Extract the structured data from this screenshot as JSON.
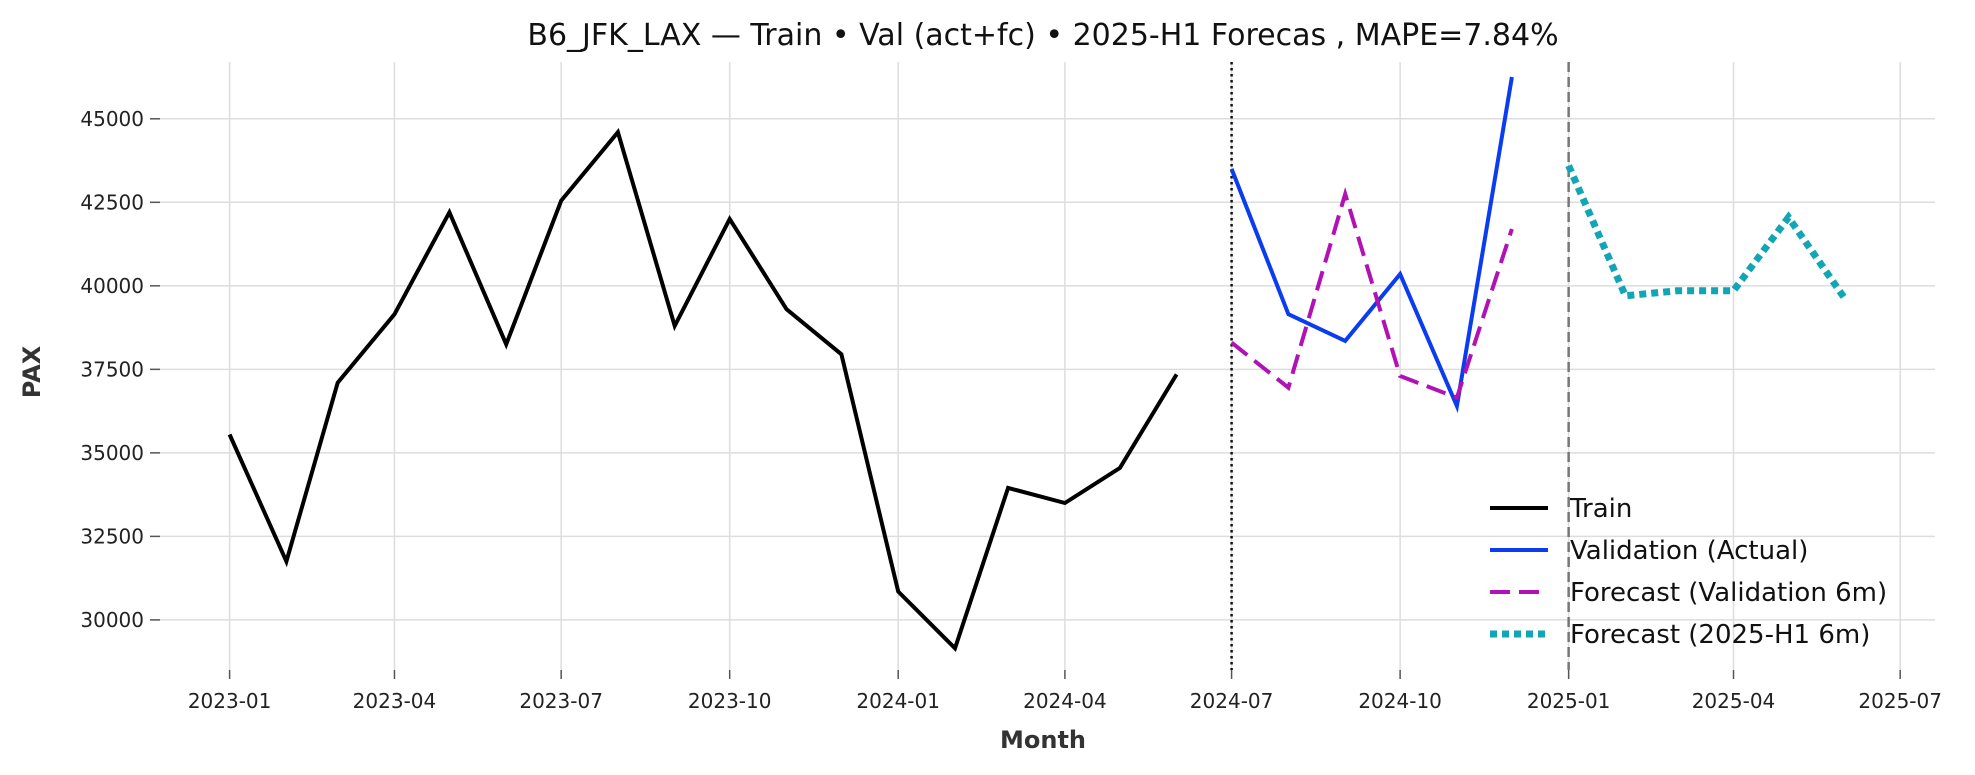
{
  "chart_data": {
    "type": "line",
    "title": "B6_JFK_LAX — Train • Val (act+fc) • 2025-H1 Forecas , MAPE=7.84%",
    "xlabel": "Month",
    "ylabel": "PAX",
    "xlim": [
      "2022-11-24",
      "2025-07-20"
    ],
    "ylim": [
      28500,
      46700
    ],
    "grid": true,
    "legend_position": "bottom-right",
    "x_ticks": [
      "2023-01",
      "2023-04",
      "2023-07",
      "2023-10",
      "2024-01",
      "2024-04",
      "2024-07",
      "2024-10",
      "2025-01",
      "2025-04",
      "2025-07"
    ],
    "y_ticks": [
      30000,
      32500,
      35000,
      37500,
      40000,
      42500,
      45000
    ],
    "vlines": [
      {
        "x": "2024-07-01",
        "color": "#111111",
        "style": "dotted"
      },
      {
        "x": "2025-01-01",
        "color": "#777777",
        "style": "dashed"
      }
    ],
    "series": [
      {
        "name": "Train",
        "color": "#000000",
        "style": "solid",
        "x": [
          "2023-01-01",
          "2023-02-01",
          "2023-03-01",
          "2023-04-01",
          "2023-05-01",
          "2023-06-01",
          "2023-07-01",
          "2023-08-01",
          "2023-09-01",
          "2023-10-01",
          "2023-11-01",
          "2023-12-01",
          "2024-01-01",
          "2024-02-01",
          "2024-03-01",
          "2024-04-01",
          "2024-05-01",
          "2024-06-01"
        ],
        "values": [
          35550,
          31750,
          37100,
          39150,
          42200,
          38250,
          42550,
          44600,
          38800,
          42000,
          39300,
          37950,
          30850,
          29150,
          33950,
          33500,
          34550,
          37350
        ]
      },
      {
        "name": "Validation (Actual)",
        "color": "#0a3cf0",
        "style": "solid",
        "x": [
          "2024-07-01",
          "2024-08-01",
          "2024-09-01",
          "2024-10-01",
          "2024-11-01",
          "2024-12-01"
        ],
        "values": [
          43500,
          39150,
          38350,
          40350,
          36400,
          46250
        ]
      },
      {
        "name": "Forecast (Validation 6m)",
        "color": "#b012b5",
        "style": "dashed",
        "x": [
          "2024-07-01",
          "2024-08-01",
          "2024-09-01",
          "2024-10-01",
          "2024-11-01",
          "2024-12-01"
        ],
        "values": [
          38300,
          36950,
          42750,
          37300,
          36650,
          41700
        ]
      },
      {
        "name": "Forecast (2025-H1 6m)",
        "color": "#12a5b5",
        "style": "dotted",
        "x": [
          "2025-01-01",
          "2025-02-01",
          "2025-03-01",
          "2025-04-01",
          "2025-05-01",
          "2025-06-01"
        ],
        "values": [
          43600,
          39700,
          39850,
          39850,
          42050,
          39600
        ]
      }
    ]
  }
}
